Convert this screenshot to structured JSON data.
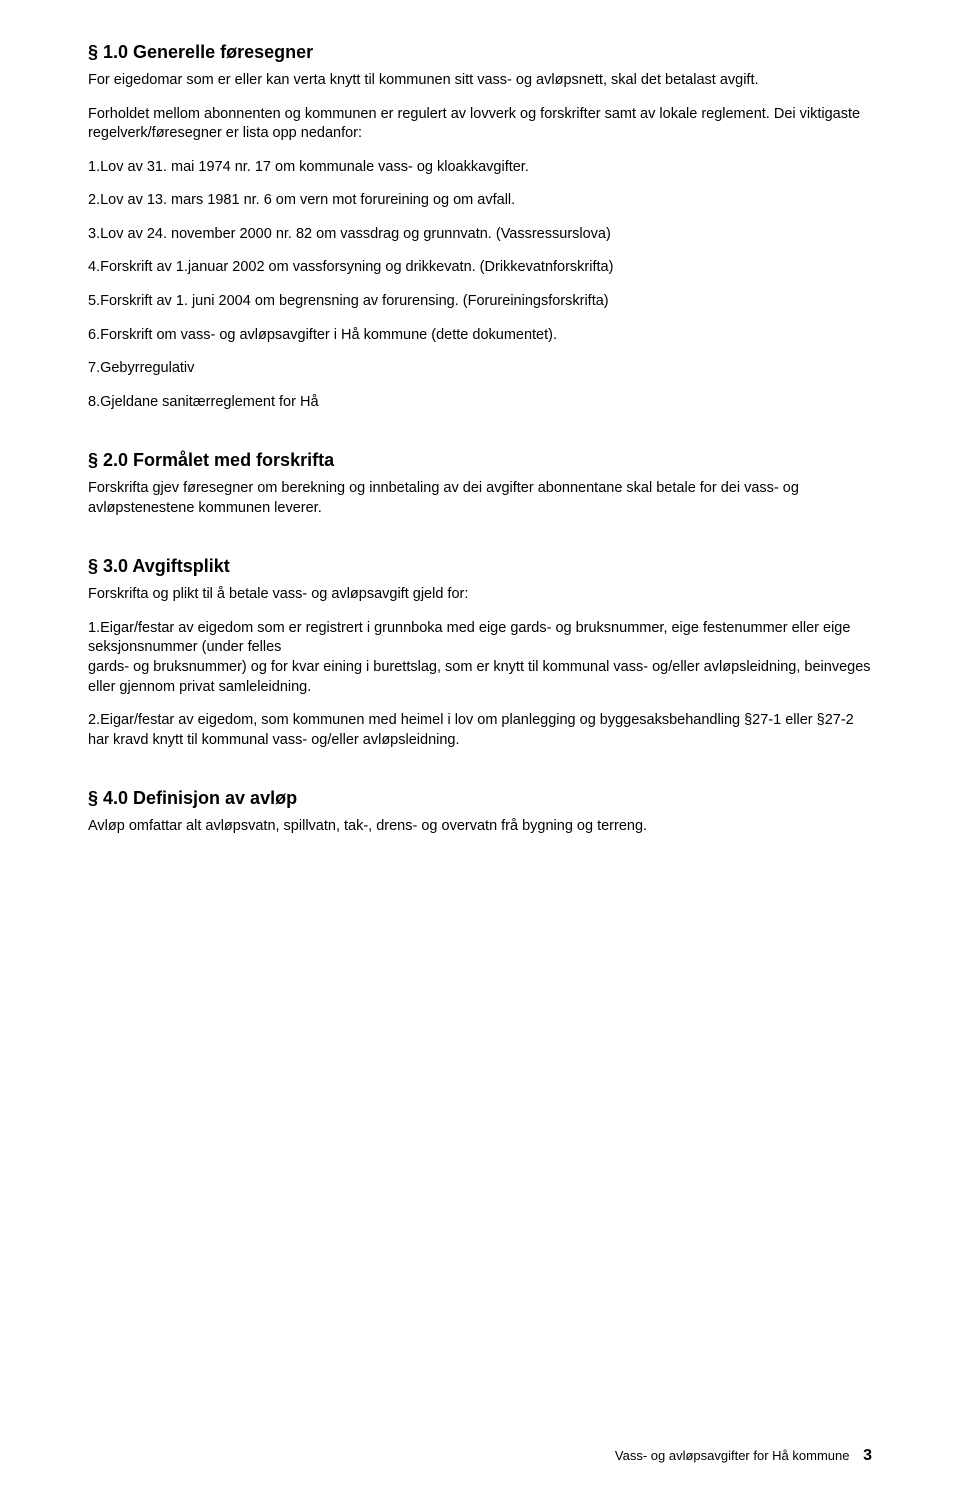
{
  "typography": {
    "heading_fontsize_pt": 14,
    "body_fontsize_pt": 11,
    "footer_fontsize_pt": 10,
    "page_number_fontsize_pt": 12,
    "font_family": "Arial",
    "text_color": "#000000",
    "background_color": "#ffffff"
  },
  "sections": {
    "s1": {
      "heading": "§ 1.0 Generelle føresegner",
      "p1": "For eigedomar som er eller kan verta knytt til kommunen sitt vass- og avløpsnett, skal det betalast avgift.",
      "p2": "Forholdet mellom abonnenten og kommunen er regulert av lovverk og forskrifter samt av lokale reglement. Dei viktigaste regelverk/føresegner er lista opp nedanfor:",
      "items": {
        "i1": "1.Lov av 31. mai 1974 nr. 17 om kommunale vass- og kloakkavgifter.",
        "i2": "2.Lov av 13. mars 1981 nr. 6 om vern mot forureining og om avfall.",
        "i3": "3.Lov av 24. november 2000 nr. 82 om vassdrag og grunnvatn. (Vassressurslova)",
        "i4": "4.Forskrift av 1.januar 2002 om vassforsyning og drikkevatn. (Drikkevatnforskrifta)",
        "i5": "5.Forskrift av 1. juni 2004 om begrensning av forurensing. (Forureiningsforskrifta)",
        "i6": "6.Forskrift om vass- og avløpsavgifter i Hå kommune (dette dokumentet).",
        "i7": "7.Gebyrregulativ",
        "i8": "8.Gjeldane sanitærreglement for Hå"
      }
    },
    "s2": {
      "heading": "§ 2.0 Formålet med forskrifta",
      "p1": "Forskrifta gjev føresegner om berekning og innbetaling av dei avgifter abonnentane skal betale for dei vass- og avløpstenestene kommunen leverer."
    },
    "s3": {
      "heading": "§ 3.0 Avgiftsplikt",
      "p1": "Forskrifta og plikt til å betale vass- og avløpsavgift gjeld for:",
      "p2": "1.Eigar/festar av eigedom som er registrert i grunnboka med eige gards- og bruksnummer, eige festenummer eller eige seksjonsnummer (under felles\ngards- og bruksnummer) og for kvar eining i burettslag, som er knytt til kommunal vass- og/eller avløpsleidning, beinveges eller gjennom privat samleleidning.",
      "p3": "2.Eigar/festar av eigedom, som kommunen med heimel i lov om planlegging og byggesaksbehandling §27-1 eller §27-2 har kravd knytt til kommunal vass- og/eller avløpsleidning."
    },
    "s4": {
      "heading": "§ 4.0 Definisjon av avløp",
      "p1": "Avløp omfattar alt avløpsvatn, spillvatn, tak-, drens- og overvatn frå bygning og terreng."
    }
  },
  "footer": {
    "text": "Vass- og avløpsavgifter for Hå kommune",
    "page": "3"
  }
}
